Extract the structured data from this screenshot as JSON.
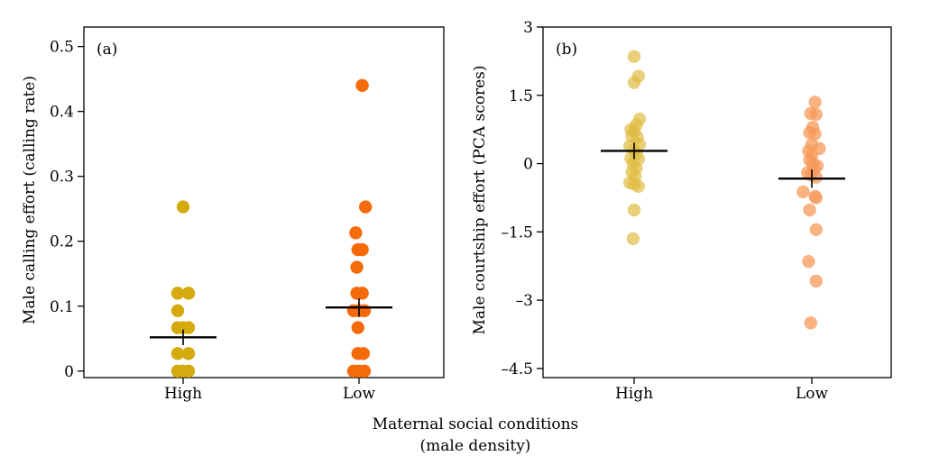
{
  "figure": {
    "x_title_line1": "Maternal social conditions",
    "x_title_line2": "(male density)"
  },
  "chart_data": [
    {
      "type": "scatter",
      "panel_label": "(a)",
      "ylabel": "Male calling effort (calling rate)",
      "xlabel": "",
      "categories": [
        "High",
        "Low"
      ],
      "ylim": [
        -0.01,
        0.53
      ],
      "yticks": [
        0,
        0.1,
        0.2,
        0.3,
        0.4,
        0.5
      ],
      "ytick_labels": [
        "0",
        "0.1",
        "0.2",
        "0.3",
        "0.4",
        "0.5"
      ],
      "series": [
        {
          "name": "High",
          "color": "#d4aa0e",
          "opacity": 1,
          "points": [
            {
              "dx": 0.0,
              "y": 0.253
            },
            {
              "dx": -0.05,
              "y": 0.12
            },
            {
              "dx": 0.05,
              "y": 0.12
            },
            {
              "dx": -0.05,
              "y": 0.093
            },
            {
              "dx": -0.05,
              "y": 0.067
            },
            {
              "dx": 0.0,
              "y": 0.067
            },
            {
              "dx": 0.05,
              "y": 0.067
            },
            {
              "dx": -0.05,
              "y": 0.027
            },
            {
              "dx": 0.05,
              "y": 0.027
            },
            {
              "dx": -0.05,
              "y": 0.0
            },
            {
              "dx": 0.0,
              "y": 0.0
            },
            {
              "dx": 0.05,
              "y": 0.0
            }
          ],
          "mean": 0.052,
          "se": 0.012
        },
        {
          "name": "Low",
          "color": "#f56a0a",
          "opacity": 1,
          "points": [
            {
              "dx": 0.03,
              "y": 0.44
            },
            {
              "dx": 0.06,
              "y": 0.253
            },
            {
              "dx": -0.03,
              "y": 0.213
            },
            {
              "dx": -0.01,
              "y": 0.187
            },
            {
              "dx": 0.03,
              "y": 0.187
            },
            {
              "dx": -0.02,
              "y": 0.16
            },
            {
              "dx": -0.02,
              "y": 0.12
            },
            {
              "dx": 0.03,
              "y": 0.12
            },
            {
              "dx": -0.05,
              "y": 0.093
            },
            {
              "dx": 0.0,
              "y": 0.093
            },
            {
              "dx": 0.05,
              "y": 0.093
            },
            {
              "dx": -0.01,
              "y": 0.067
            },
            {
              "dx": -0.01,
              "y": 0.027
            },
            {
              "dx": 0.04,
              "y": 0.027
            },
            {
              "dx": -0.05,
              "y": 0.0
            },
            {
              "dx": 0.0,
              "y": 0.0
            },
            {
              "dx": 0.05,
              "y": 0.0
            }
          ],
          "mean": 0.098,
          "se": 0.014
        }
      ]
    },
    {
      "type": "scatter",
      "panel_label": "(b)",
      "ylabel": "Male courtship effort (PCA scores)",
      "xlabel": "",
      "categories": [
        "High",
        "Low"
      ],
      "ylim": [
        -4.7,
        3.0
      ],
      "yticks": [
        3,
        1.5,
        0,
        -1.5,
        -3,
        -4.5
      ],
      "ytick_labels": [
        "3",
        "1.5",
        "0",
        "–1.5",
        "–3",
        "–4.5"
      ],
      "series": [
        {
          "name": "High",
          "color": "#e0bc42",
          "opacity": 0.7,
          "points": [
            {
              "dx": 0.0,
              "y": 2.35
            },
            {
              "dx": 0.04,
              "y": 1.92
            },
            {
              "dx": 0.0,
              "y": 1.78
            },
            {
              "dx": 0.05,
              "y": 0.98
            },
            {
              "dx": 0.02,
              "y": 0.85
            },
            {
              "dx": -0.03,
              "y": 0.75
            },
            {
              "dx": 0.0,
              "y": 0.72
            },
            {
              "dx": -0.02,
              "y": 0.6
            },
            {
              "dx": 0.03,
              "y": 0.58
            },
            {
              "dx": 0.05,
              "y": 0.42
            },
            {
              "dx": -0.04,
              "y": 0.38
            },
            {
              "dx": 0.0,
              "y": 0.3
            },
            {
              "dx": 0.02,
              "y": 0.22
            },
            {
              "dx": -0.03,
              "y": 0.12
            },
            {
              "dx": 0.04,
              "y": 0.1
            },
            {
              "dx": -0.01,
              "y": 0.0
            },
            {
              "dx": 0.02,
              "y": -0.1
            },
            {
              "dx": -0.02,
              "y": -0.18
            },
            {
              "dx": 0.01,
              "y": -0.28
            },
            {
              "dx": -0.04,
              "y": -0.42
            },
            {
              "dx": 0.0,
              "y": -0.45
            },
            {
              "dx": 0.04,
              "y": -0.5
            },
            {
              "dx": 0.0,
              "y": -1.02
            },
            {
              "dx": -0.01,
              "y": -1.65
            }
          ],
          "mean": 0.28,
          "se": 0.18
        },
        {
          "name": "Low",
          "color": "#f79a5a",
          "opacity": 0.75,
          "points": [
            {
              "dx": 0.03,
              "y": 1.35
            },
            {
              "dx": -0.01,
              "y": 1.1
            },
            {
              "dx": 0.04,
              "y": 1.08
            },
            {
              "dx": 0.01,
              "y": 0.8
            },
            {
              "dx": -0.02,
              "y": 0.68
            },
            {
              "dx": 0.03,
              "y": 0.65
            },
            {
              "dx": 0.0,
              "y": 0.42
            },
            {
              "dx": 0.07,
              "y": 0.33
            },
            {
              "dx": -0.03,
              "y": 0.28
            },
            {
              "dx": 0.0,
              "y": 0.18
            },
            {
              "dx": -0.02,
              "y": 0.08
            },
            {
              "dx": 0.01,
              "y": 0.0
            },
            {
              "dx": 0.05,
              "y": -0.05
            },
            {
              "dx": 0.02,
              "y": -0.12
            },
            {
              "dx": -0.04,
              "y": -0.2
            },
            {
              "dx": -0.01,
              "y": -0.25
            },
            {
              "dx": 0.04,
              "y": -0.3
            },
            {
              "dx": -0.08,
              "y": -0.62
            },
            {
              "dx": 0.03,
              "y": -0.72
            },
            {
              "dx": 0.04,
              "y": -0.75
            },
            {
              "dx": -0.02,
              "y": -1.02
            },
            {
              "dx": 0.04,
              "y": -1.45
            },
            {
              "dx": -0.03,
              "y": -2.15
            },
            {
              "dx": 0.04,
              "y": -2.58
            },
            {
              "dx": -0.01,
              "y": -3.5
            }
          ],
          "mean": -0.33,
          "se": 0.2
        }
      ]
    }
  ]
}
